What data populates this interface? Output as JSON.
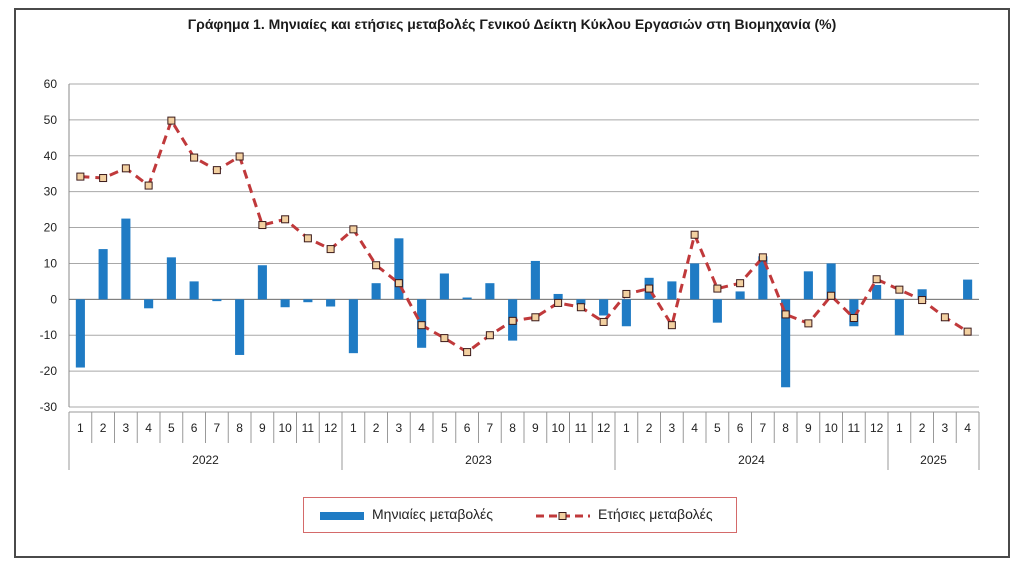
{
  "title": "Γράφημα 1. Μηνιαίες και ετήσιες μεταβολές  Γενικού Δείκτη Κύκλου Εργασιών στη Βιομηχανία (%)",
  "chart_data": {
    "type": "bar",
    "title": "Γράφημα 1. Μηνιαίες και ετήσιες μεταβολές  Γενικού Δείκτη Κύκλου Εργασιών στη Βιομηχανία (%)",
    "ylim": [
      -30,
      60
    ],
    "yticks": [
      60,
      50,
      40,
      30,
      20,
      10,
      0,
      -10,
      -20,
      -30
    ],
    "grid": true,
    "legend_position": "bottom",
    "categories": [
      "1",
      "2",
      "3",
      "4",
      "5",
      "6",
      "7",
      "8",
      "9",
      "10",
      "11",
      "12",
      "1",
      "2",
      "3",
      "4",
      "5",
      "6",
      "7",
      "8",
      "9",
      "10",
      "11",
      "12",
      "1",
      "2",
      "3",
      "4",
      "5",
      "6",
      "7",
      "8",
      "9",
      "10",
      "11",
      "12",
      "1",
      "2",
      "3",
      "4"
    ],
    "years": [
      {
        "label": "2022",
        "count": 12
      },
      {
        "label": "2023",
        "count": 12
      },
      {
        "label": "2024",
        "count": 12
      },
      {
        "label": "2025",
        "count": 4
      }
    ],
    "series": [
      {
        "name": "Μηνιαίες μεταβολές",
        "type": "bar",
        "color": "#1f7bc4",
        "values": [
          -19.0,
          14.0,
          22.5,
          -2.5,
          11.7,
          5.0,
          -0.5,
          -15.5,
          9.5,
          -2.2,
          -0.8,
          -2.0,
          -15.0,
          4.5,
          17.0,
          -13.5,
          7.2,
          0.5,
          4.5,
          -11.5,
          10.7,
          1.5,
          -1.5,
          -4.5,
          -7.5,
          6.0,
          5.0,
          10.0,
          -6.5,
          2.2,
          12.0,
          -24.5,
          7.8,
          10.0,
          -7.5,
          4.0,
          -10.0,
          2.8,
          0.0,
          5.5
        ]
      },
      {
        "name": "Ετήσιες μεταβολές",
        "type": "line",
        "color": "#c0393b",
        "values": [
          34.2,
          33.8,
          36.5,
          31.7,
          49.8,
          39.5,
          36.0,
          39.8,
          20.7,
          22.3,
          17.0,
          14.0,
          19.5,
          9.5,
          4.5,
          -7.2,
          -10.8,
          -14.7,
          -10.0,
          -6.0,
          -5.0,
          -1.0,
          -2.2,
          -6.3,
          1.5,
          3.0,
          -7.2,
          18.0,
          3.0,
          4.5,
          11.7,
          -4.2,
          -6.7,
          1.0,
          -5.2,
          5.6,
          2.7,
          -0.2,
          -5.0,
          -9.0
        ]
      }
    ]
  }
}
